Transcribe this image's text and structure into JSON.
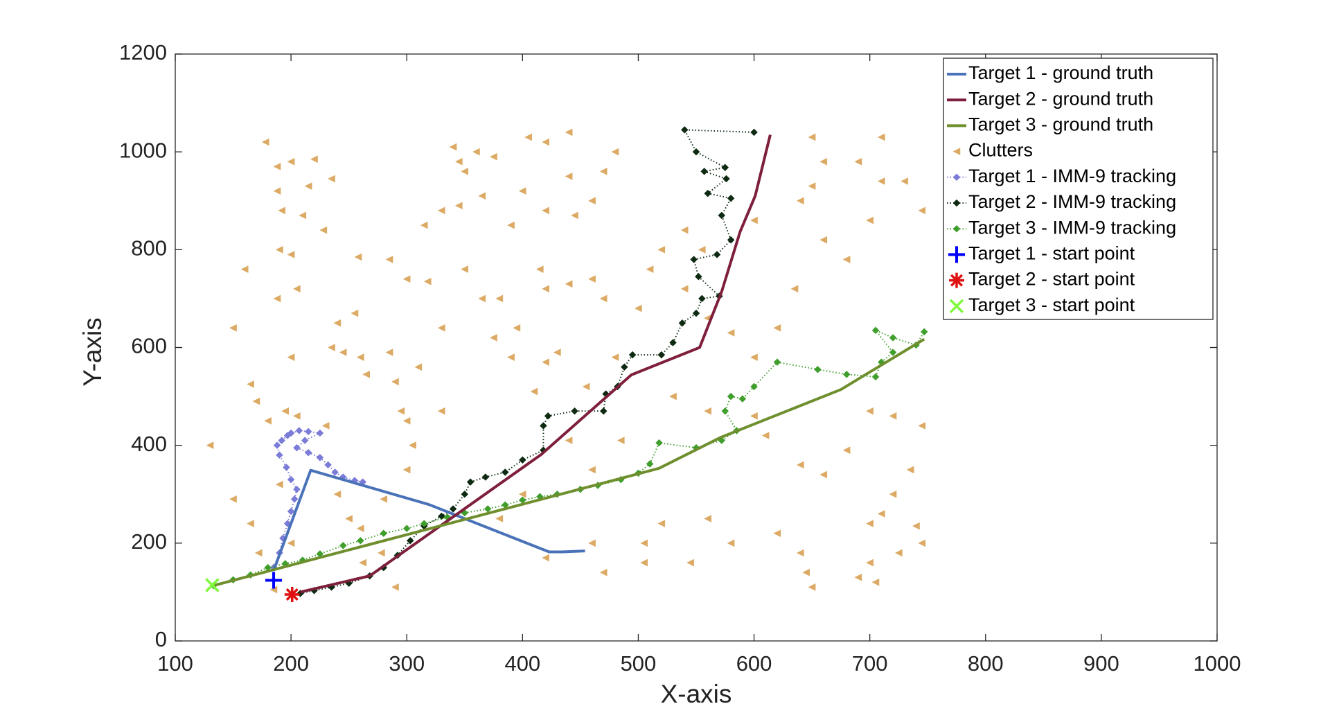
{
  "chart_data": {
    "type": "scatter",
    "xlabel": "X-axis",
    "ylabel": "Y-axis",
    "xlim": [
      100,
      1000
    ],
    "xticks": [
      100,
      200,
      300,
      400,
      500,
      600,
      700,
      800,
      900,
      1000
    ],
    "ylim": [
      0,
      1200
    ],
    "yticks": [
      0,
      200,
      400,
      600,
      800,
      1000,
      1200
    ],
    "grid": false,
    "legend": "upper right",
    "series": [
      {
        "name": "Target 1 - ground truth",
        "color": "#4a72b8",
        "line": "solid",
        "marker": "none",
        "x": [
          185,
          217,
          319,
          423,
          434,
          454
        ],
        "values": [
          144,
          349,
          279,
          182,
          182,
          184
        ]
      },
      {
        "name": "Target 2 - ground truth",
        "color": "#7e1f3c",
        "line": "solid",
        "marker": "none",
        "x": [
          208,
          268,
          416,
          494,
          553,
          572,
          588,
          601,
          614
        ],
        "values": [
          100,
          133,
          381,
          544,
          600,
          714,
          837,
          910,
          1035
        ]
      },
      {
        "name": "Target 3 - ground truth",
        "color": "#6f8f2e",
        "line": "solid",
        "marker": "none",
        "x": [
          131,
          518,
          571,
          675,
          747
        ],
        "values": [
          112,
          353,
          416,
          514,
          617
        ]
      },
      {
        "name": "Clutters",
        "color": "#dcaa64",
        "line": "none",
        "marker": "triangle",
        "x": [
          178,
          188,
          200,
          220,
          235,
          188,
          215,
          192,
          210,
          228,
          190,
          200,
          160,
          188,
          205,
          150,
          240,
          255,
          200,
          235,
          245,
          165,
          170,
          195,
          205,
          230,
          180,
          130,
          190,
          150,
          165,
          250,
          240,
          172,
          185,
          200,
          260,
          262,
          278,
          290,
          280,
          300,
          305,
          300,
          260,
          265,
          285,
          290,
          258,
          285,
          300,
          318,
          315,
          330,
          345,
          350,
          375,
          360,
          340,
          345,
          365,
          390,
          400,
          420,
          445,
          440,
          460,
          470,
          480,
          405,
          420,
          440,
          415,
          420,
          440,
          460,
          470,
          380,
          395,
          375,
          390,
          420,
          455,
          430,
          410,
          440,
          485,
          460,
          400,
          380,
          420,
          460,
          470,
          505,
          520,
          505,
          545,
          560,
          580,
          620,
          640,
          650,
          645,
          700,
          710,
          725,
          740,
          745,
          700,
          690,
          705,
          720,
          735,
          745,
          720,
          700,
          680,
          660,
          640,
          600,
          620,
          635,
          660,
          680,
          700,
          710,
          730,
          745,
          690,
          710,
          650,
          640,
          600,
          580,
          560,
          555,
          520,
          510,
          500,
          540,
          480,
          530,
          560,
          600,
          610,
          350,
          365,
          330,
          310,
          295,
          330,
          540,
          650,
          660
        ],
        "values": [
          1020,
          970,
          980,
          985,
          945,
          920,
          930,
          880,
          870,
          840,
          800,
          790,
          760,
          700,
          720,
          640,
          650,
          670,
          580,
          600,
          590,
          525,
          490,
          470,
          460,
          440,
          450,
          400,
          320,
          290,
          240,
          250,
          300,
          180,
          105,
          200,
          230,
          160,
          180,
          110,
          290,
          350,
          400,
          450,
          580,
          545,
          590,
          530,
          785,
          780,
          740,
          735,
          850,
          880,
          890,
          960,
          990,
          1000,
          1010,
          980,
          910,
          850,
          920,
          880,
          870,
          950,
          900,
          960,
          1000,
          1030,
          1020,
          1040,
          760,
          720,
          730,
          740,
          700,
          700,
          640,
          620,
          580,
          570,
          520,
          590,
          510,
          410,
          410,
          350,
          300,
          250,
          170,
          200,
          140,
          200,
          240,
          160,
          160,
          250,
          200,
          220,
          180,
          110,
          140,
          240,
          260,
          180,
          235,
          200,
          160,
          130,
          120,
          300,
          350,
          440,
          460,
          470,
          390,
          340,
          360,
          580,
          640,
          720,
          820,
          780,
          860,
          940,
          940,
          880,
          980,
          1030,
          930,
          900,
          860,
          630,
          660,
          800,
          800,
          760,
          680,
          720,
          580,
          500,
          470,
          460,
          420,
          760,
          700,
          640,
          560,
          470,
          470,
          840,
          1030,
          980
        ]
      },
      {
        "name": "Target 1 - IMM-9 tracking",
        "color": "#7b7bd8",
        "line": "dotted",
        "marker": "diamond",
        "x": [
          185,
          190,
          193,
          197,
          200,
          203,
          205,
          200,
          196,
          190,
          188,
          192,
          197,
          200,
          207,
          215,
          225,
          212,
          205,
          215,
          225,
          232,
          238,
          245,
          255,
          262
        ],
        "values": [
          150,
          180,
          210,
          240,
          265,
          290,
          310,
          330,
          355,
          380,
          400,
          410,
          420,
          425,
          430,
          428,
          425,
          410,
          395,
          385,
          375,
          360,
          345,
          335,
          328,
          325
        ]
      },
      {
        "name": "Target 2 - IMM-9 tracking",
        "color": "#0e2a12",
        "line": "dotted",
        "marker": "diamond",
        "x": [
          208,
          220,
          235,
          250,
          268,
          280,
          292,
          303,
          315,
          330,
          340,
          350,
          355,
          368,
          385,
          400,
          418,
          418,
          422,
          445,
          470,
          472,
          482,
          488,
          495,
          520,
          530,
          538,
          550,
          555,
          570,
          552,
          548,
          568,
          580,
          572,
          580,
          560,
          576,
          557,
          575,
          550,
          540,
          600
        ],
        "values": [
          97,
          103,
          110,
          118,
          133,
          150,
          175,
          205,
          235,
          255,
          270,
          300,
          325,
          335,
          345,
          370,
          390,
          440,
          460,
          470,
          470,
          505,
          520,
          560,
          585,
          585,
          610,
          650,
          670,
          700,
          705,
          745,
          780,
          790,
          820,
          870,
          905,
          915,
          945,
          960,
          968,
          1000,
          1045,
          1040
        ]
      },
      {
        "name": "Target 3 - IMM-9 tracking",
        "color": "#3f9e2c",
        "line": "dotted",
        "marker": "diamond",
        "x": [
          133,
          150,
          165,
          180,
          195,
          210,
          225,
          245,
          260,
          280,
          300,
          315,
          335,
          350,
          370,
          385,
          400,
          415,
          430,
          450,
          465,
          485,
          500,
          510,
          518,
          550,
          572,
          585,
          575,
          580,
          590,
          600,
          620,
          655,
          680,
          705,
          710,
          720,
          705,
          720,
          740,
          747
        ],
        "values": [
          113,
          125,
          135,
          150,
          158,
          165,
          178,
          195,
          205,
          220,
          230,
          240,
          253,
          262,
          270,
          278,
          288,
          295,
          300,
          310,
          318,
          330,
          343,
          362,
          405,
          395,
          410,
          430,
          470,
          500,
          495,
          520,
          570,
          555,
          545,
          540,
          570,
          590,
          635,
          620,
          605,
          632
        ]
      },
      {
        "name": "Target 1 - start point",
        "color": "#0000ff",
        "line": "none",
        "marker": "plus",
        "x": [
          185
        ],
        "values": [
          124
        ]
      },
      {
        "name": "Target 2 - start point",
        "color": "#e01010",
        "line": "none",
        "marker": "asterisk",
        "x": [
          201
        ],
        "values": [
          95
        ]
      },
      {
        "name": "Target 3 - start point",
        "color": "#7dfa3c",
        "line": "none",
        "marker": "cross",
        "x": [
          132
        ],
        "values": [
          114
        ]
      }
    ]
  }
}
